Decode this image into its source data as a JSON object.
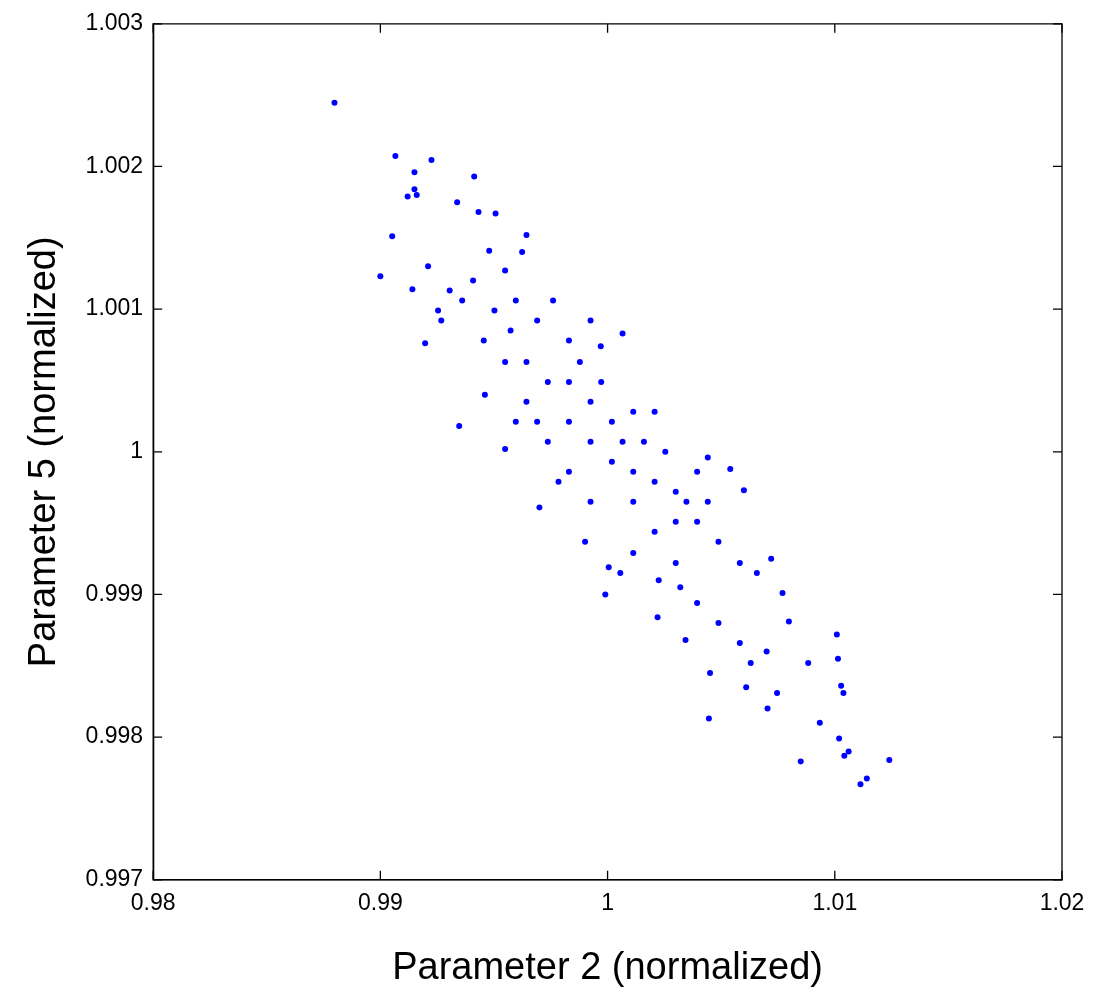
{
  "chart_data": {
    "type": "scatter",
    "xlabel": "Parameter 2 (normalized)",
    "ylabel": "Parameter 5 (normalized)",
    "marker": "circle",
    "grid": false,
    "legend": false,
    "xlim": [
      0.98,
      1.02
    ],
    "xticks": [
      0.98,
      0.99,
      1,
      1.01,
      1.02
    ],
    "ylim": [
      0.997,
      1.003
    ],
    "yticks": [
      0.997,
      0.998,
      0.999,
      1,
      1.001,
      1.002,
      1.003
    ],
    "series": [
      {
        "color": "#0000ff",
        "x": [
          0.98798,
          0.99066,
          0.99225,
          0.9915,
          0.99413,
          0.9915,
          0.9916,
          0.9912,
          0.99052,
          0.99,
          0.99141,
          0.9921,
          0.99338,
          0.99432,
          0.99507,
          0.99197,
          0.99347,
          0.9946,
          0.99549,
          0.99643,
          0.99624,
          0.9936,
          0.99268,
          0.99408,
          0.99479,
          0.99549,
          0.99596,
          0.9969,
          0.9976,
          0.9983,
          0.99925,
          1.00066,
          0.9997,
          0.99643,
          0.99737,
          0.9983,
          0.99925,
          0.99549,
          0.99455,
          0.9983,
          0.99925,
          1.00019,
          1.00113,
          1.00207,
          1.00019,
          1.00113,
          1.00207,
          1.003,
          1.00394,
          1.00441,
          1.0054,
          1.006,
          0.99737,
          0.9983,
          0.997,
          0.99901,
          1.00005,
          0.9999,
          1.00113,
          1.00056,
          1.00207,
          1.003,
          1.00225,
          1.003,
          1.00394,
          1.00488,
          1.00582,
          1.00657,
          1.0072,
          1.0032,
          1.00394,
          1.00488,
          1.00343,
          1.0022,
          1.00451,
          1.00446,
          1.00582,
          1.0061,
          1.0063,
          1.007,
          1.0077,
          1.00798,
          1.00704,
          1.00746,
          1.00883,
          1.00934,
          1.01009,
          1.01014,
          1.01028,
          1.01038,
          1.0085,
          1.01019,
          1.01042,
          1.01061,
          1.01113,
          1.01141,
          1.0124,
          0.99878,
          0.99972,
          1.00066,
          1.0016,
          1.00254,
          1.00347,
          1.00441,
          1.00113,
          0.99925,
          0.99784,
          0.9969,
          0.99596,
          0.99643,
          0.99573,
          0.99502,
          0.99305,
          0.99254
        ],
        "values": [
          1.002447,
          1.002073,
          1.002045,
          1.00196,
          1.00193,
          1.00184,
          1.0018,
          1.00179,
          1.00151,
          1.00123,
          1.00114,
          1.0013,
          1.00175,
          1.00168,
          1.00167,
          1.00076,
          1.00018,
          1.0004,
          1.00002,
          1.00152,
          1.0014,
          1.00106,
          1.00092,
          1.0012,
          1.00141,
          1.00127,
          1.00106,
          1.00092,
          1.00106,
          1.00078,
          1.00092,
          1.00083,
          1.00074,
          1.00063,
          1.00049,
          1.00049,
          1.00035,
          1.00063,
          1.00078,
          1.00021,
          1.00007,
          1.00021,
          1.00028,
          1.00028,
          0.99993,
          0.99986,
          0.99979,
          0.99972,
          0.99986,
          0.99996,
          0.99988,
          0.99973,
          1.00007,
          0.99986,
          0.99961,
          0.99937,
          0.99919,
          0.999,
          0.99929,
          0.99915,
          0.99944,
          0.99951,
          0.9991,
          0.99922,
          0.99951,
          0.99937,
          0.99922,
          0.99915,
          0.99925,
          0.99905,
          0.99894,
          0.9988,
          0.99868,
          0.99884,
          0.99845,
          0.99813,
          0.99866,
          0.99835,
          0.99852,
          0.9986,
          0.99901,
          0.99881,
          0.9982,
          0.99831,
          0.99852,
          0.9981,
          0.99872,
          0.99855,
          0.99836,
          0.99831,
          0.99783,
          0.99799,
          0.99787,
          0.9979,
          0.99767,
          0.99771,
          0.99784,
          1.00063,
          1.00049,
          1.00007,
          1.00007,
          1.0,
          0.99965,
          0.99965,
          0.99965,
          0.99965,
          0.99979,
          1.00021,
          1.00021,
          1.00035,
          1.00085,
          1.00099,
          1.00113,
          1.00099
        ]
      }
    ]
  }
}
